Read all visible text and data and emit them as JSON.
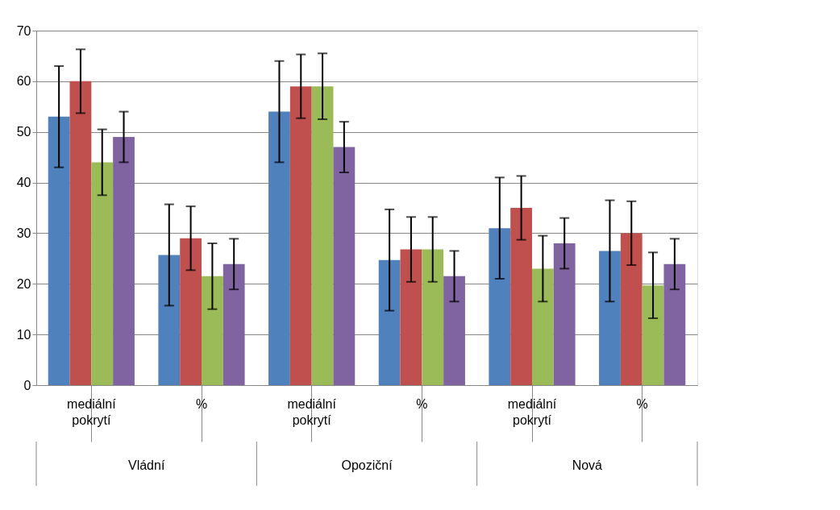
{
  "chart_data": {
    "type": "bar",
    "categories": [
      "mediální pokrytí",
      "%",
      "mediální pokrytí",
      "%",
      "mediální pokrytí",
      "%"
    ],
    "series": [
      {
        "color": "#4f81bd",
        "values": [
          53,
          25.7,
          54,
          24.7,
          31,
          26.5
        ],
        "errors": [
          10,
          10,
          10,
          10,
          10,
          10
        ]
      },
      {
        "color": "#c0504d",
        "values": [
          60,
          29,
          59,
          26.8,
          35,
          30
        ],
        "errors": [
          6.3,
          6.3,
          6.3,
          6.4,
          6.3,
          6.3
        ]
      },
      {
        "color": "#9bbb59",
        "values": [
          44,
          21.5,
          59,
          26.8,
          23,
          19.7
        ],
        "errors": [
          6.5,
          6.5,
          6.5,
          6.4,
          6.5,
          6.5
        ]
      },
      {
        "color": "#8064a2",
        "values": [
          49,
          23.9,
          47,
          21.5,
          28,
          23.9
        ],
        "errors": [
          5,
          5,
          5,
          5,
          5,
          5
        ]
      }
    ],
    "annotations": [
      "Vládní",
      "Opoziční",
      "Nová"
    ],
    "ylim": [
      0,
      70
    ],
    "yticks": [
      0,
      10,
      20,
      30,
      40,
      50,
      60,
      70
    ],
    "grid": "y"
  }
}
